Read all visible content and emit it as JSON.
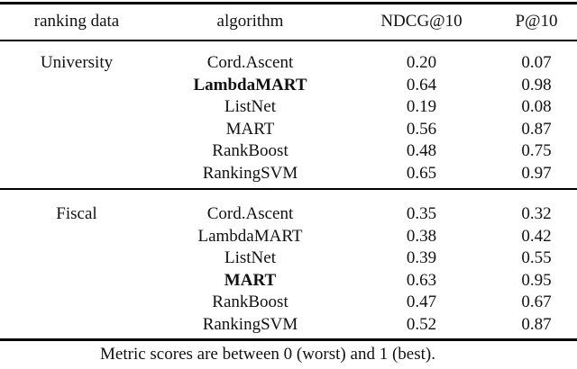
{
  "table": {
    "columns": [
      "ranking data",
      "algorithm",
      "NDCG@10",
      "P@10"
    ],
    "sections": [
      {
        "dataset": "University",
        "rows": [
          {
            "algorithm": "Cord.Ascent",
            "ndcg10": "0.20",
            "p10": "0.07",
            "bold": false
          },
          {
            "algorithm": "LambdaMART",
            "ndcg10": "0.64",
            "p10": "0.98",
            "bold": true
          },
          {
            "algorithm": "ListNet",
            "ndcg10": "0.19",
            "p10": "0.08",
            "bold": false
          },
          {
            "algorithm": "MART",
            "ndcg10": "0.56",
            "p10": "0.87",
            "bold": false
          },
          {
            "algorithm": "RankBoost",
            "ndcg10": "0.48",
            "p10": "0.75",
            "bold": false
          },
          {
            "algorithm": "RankingSVM",
            "ndcg10": "0.65",
            "p10": "0.97",
            "bold": false
          }
        ]
      },
      {
        "dataset": "Fiscal",
        "rows": [
          {
            "algorithm": "Cord.Ascent",
            "ndcg10": "0.35",
            "p10": "0.32",
            "bold": false
          },
          {
            "algorithm": "LambdaMART",
            "ndcg10": "0.38",
            "p10": "0.42",
            "bold": false
          },
          {
            "algorithm": "ListNet",
            "ndcg10": "0.39",
            "p10": "0.55",
            "bold": false
          },
          {
            "algorithm": "MART",
            "ndcg10": "0.63",
            "p10": "0.95",
            "bold": true
          },
          {
            "algorithm": "RankBoost",
            "ndcg10": "0.47",
            "p10": "0.67",
            "bold": false
          },
          {
            "algorithm": "RankingSVM",
            "ndcg10": "0.52",
            "p10": "0.87",
            "bold": false
          }
        ]
      }
    ],
    "footnote": "Metric scores are between 0 (worst) and 1 (best).",
    "colors": {
      "text": "#111111",
      "rule": "#000000",
      "background": "#ffffff"
    }
  }
}
